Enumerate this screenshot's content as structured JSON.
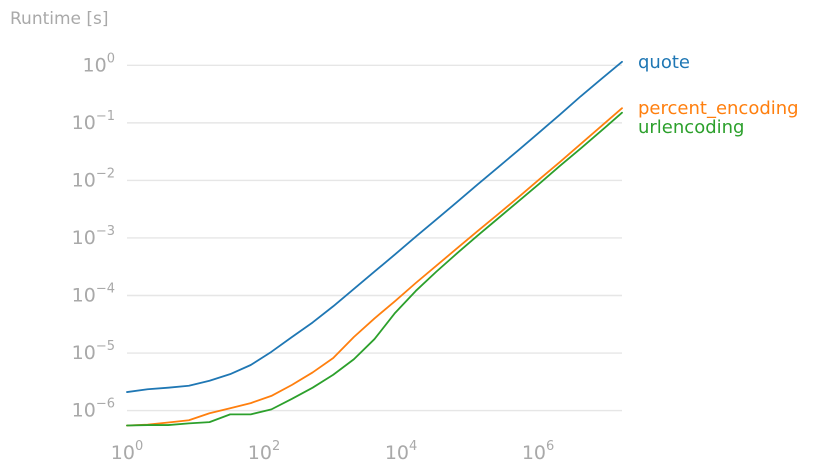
{
  "chart_data": {
    "type": "line",
    "ylabel": "Runtime [s]",
    "xlabel": "",
    "x_scale": "log",
    "y_scale": "log",
    "xlim": [
      1,
      16777216
    ],
    "ylim": [
      4.6e-07,
      2.0
    ],
    "grid": "horizontal",
    "legend": "right of lines, at line ends",
    "x_ticks": [
      {
        "base": "10",
        "exp": "0",
        "value": 1
      },
      {
        "base": "10",
        "exp": "2",
        "value": 100
      },
      {
        "base": "10",
        "exp": "4",
        "value": 10000
      },
      {
        "base": "10",
        "exp": "6",
        "value": 1000000
      }
    ],
    "y_ticks": [
      {
        "base": "10",
        "exp": "0",
        "value": 1
      },
      {
        "base": "10",
        "exp": "−1",
        "value": 0.1
      },
      {
        "base": "10",
        "exp": "−2",
        "value": 0.01
      },
      {
        "base": "10",
        "exp": "−3",
        "value": 0.001
      },
      {
        "base": "10",
        "exp": "−4",
        "value": 0.0001
      },
      {
        "base": "10",
        "exp": "−5",
        "value": 1e-05
      },
      {
        "base": "10",
        "exp": "−6",
        "value": 1e-06
      }
    ],
    "x": [
      1,
      2,
      4,
      8,
      16,
      32,
      64,
      128,
      256,
      512,
      1024,
      2048,
      4096,
      8192,
      16384,
      32768,
      65536,
      131072,
      262144,
      524288,
      1048576,
      2097152,
      4194304,
      8388608,
      16777216
    ],
    "series": [
      {
        "name": "quote",
        "color": "#1f77b4",
        "values": [
          2.1e-06,
          2.35e-06,
          2.5e-06,
          2.7e-06,
          3.3e-06,
          4.3e-06,
          6.2e-06,
          1.05e-05,
          1.9e-05,
          3.4e-05,
          6.5e-05,
          0.00013,
          0.00026,
          0.00052,
          0.00105,
          0.0021,
          0.0042,
          0.0085,
          0.017,
          0.034,
          0.069,
          0.14,
          0.29,
          0.58,
          1.15
        ]
      },
      {
        "name": "percent_encoding",
        "color": "#ff7f0e",
        "values": [
          5.5e-07,
          5.7e-07,
          6.2e-07,
          6.8e-07,
          9e-07,
          1.1e-06,
          1.35e-06,
          1.8e-06,
          2.8e-06,
          4.6e-06,
          8.2e-06,
          1.9e-05,
          4e-05,
          8e-05,
          0.000165,
          0.00033,
          0.00066,
          0.00132,
          0.0026,
          0.0052,
          0.0105,
          0.021,
          0.043,
          0.088,
          0.18
        ]
      },
      {
        "name": "urlencoding",
        "color": "#2ca02c",
        "values": [
          5.5e-07,
          5.6e-07,
          5.6e-07,
          6e-07,
          6.3e-07,
          8.6e-07,
          8.6e-07,
          1.05e-06,
          1.6e-06,
          2.5e-06,
          4.2e-06,
          7.8e-06,
          1.75e-05,
          5e-05,
          0.00012,
          0.00026,
          0.00054,
          0.0011,
          0.0022,
          0.0044,
          0.0088,
          0.018,
          0.036,
          0.073,
          0.15
        ]
      }
    ]
  }
}
